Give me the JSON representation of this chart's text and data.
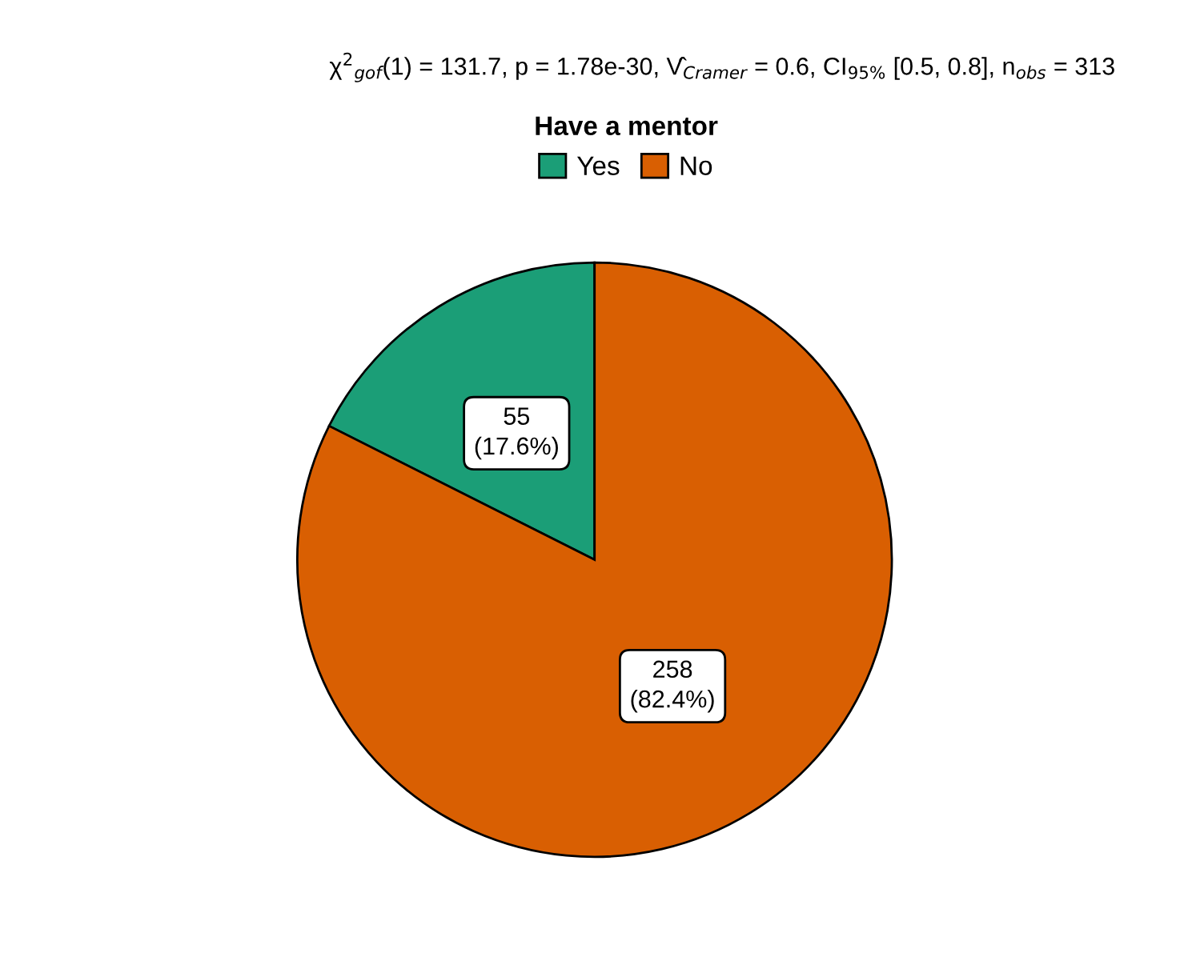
{
  "chart_data": {
    "type": "pie",
    "subtitle": "χ$^{2}$$_{gof}$(1) = 131.7, p = 1.78e-30, V̂$_{Cramer}$ = 0.6, CI$_{95%}$ [0.5, 0.8], n$_{obs}$ = 313",
    "legend_title": "Have a mentor",
    "categories": [
      "Yes",
      "No"
    ],
    "values": [
      55,
      258
    ],
    "colors": [
      "#1b9e77",
      "#d95f02"
    ],
    "value_labels": [
      "55\n(17.6%)",
      "258\n(82.4%)"
    ],
    "legend": "top"
  }
}
